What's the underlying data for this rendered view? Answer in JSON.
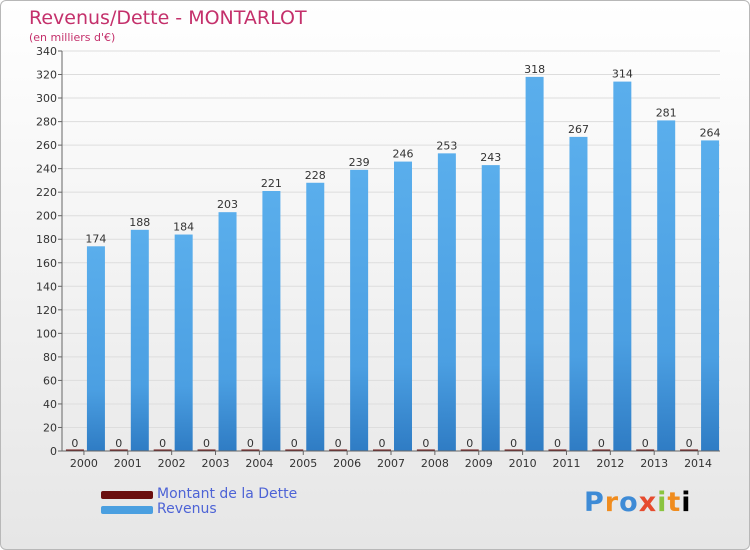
{
  "header": {
    "title": "Revenus/Dette - MONTARLOT",
    "subtitle": "(en milliers d'€)"
  },
  "legend": {
    "items": [
      {
        "label": "Montant de la Dette",
        "color": "#6b0e0e"
      },
      {
        "label": "Revenus",
        "color": "#4a9fe0"
      }
    ]
  },
  "logo": {
    "letters": [
      "P",
      "r",
      "o",
      "x",
      "i",
      "t",
      "i"
    ],
    "text": "Proxiti"
  },
  "colors": {
    "revenus_bar": "#55aaea",
    "revenus_bar_dark": "#3a86cc",
    "dette_bar": "#6b0e0e",
    "axis": "#666666",
    "grid": "#dddddd",
    "tick_text": "#333333",
    "value_text": "#333333"
  },
  "chart_data": {
    "type": "bar",
    "categories": [
      "2000",
      "2001",
      "2002",
      "2003",
      "2004",
      "2005",
      "2006",
      "2007",
      "2008",
      "2009",
      "2010",
      "2011",
      "2012",
      "2013",
      "2014"
    ],
    "series": [
      {
        "name": "Montant de la Dette",
        "values": [
          0,
          0,
          0,
          0,
          0,
          0,
          0,
          0,
          0,
          0,
          0,
          0,
          0,
          0,
          0
        ]
      },
      {
        "name": "Revenus",
        "values": [
          174,
          188,
          184,
          203,
          221,
          228,
          239,
          246,
          253,
          243,
          318,
          267,
          314,
          281,
          264
        ]
      }
    ],
    "title": "Revenus/Dette - MONTARLOT",
    "subtitle": "(en milliers d'€)",
    "ylim": [
      0,
      340
    ],
    "yticks": [
      0,
      20,
      40,
      60,
      80,
      100,
      120,
      140,
      160,
      180,
      200,
      220,
      240,
      260,
      280,
      300,
      320,
      340
    ],
    "grid": true,
    "legend_position": "bottom-left"
  }
}
